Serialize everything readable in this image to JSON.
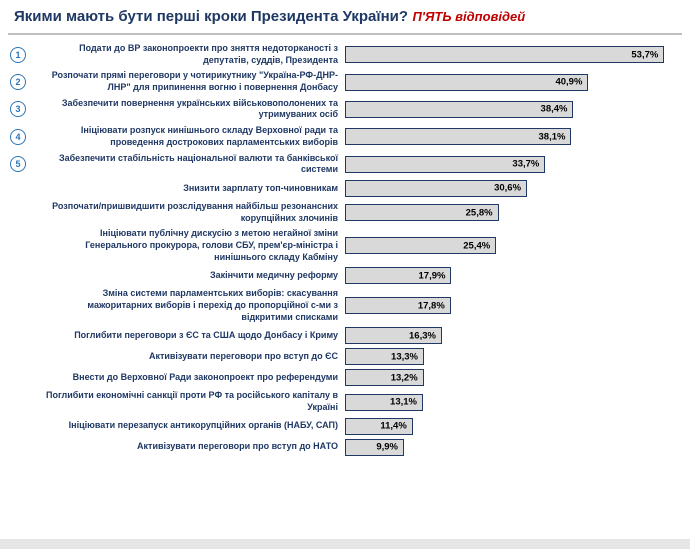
{
  "title": {
    "main": "Якими мають бути перші кроки Президента України?",
    "highlight": "П'ЯТЬ відповідей"
  },
  "colors": {
    "title_navy": "#1F3864",
    "subtitle_red": "#C00000",
    "bar_fill": "#D9D9D9",
    "bar_border": "#1F3864",
    "badge_blue": "#2E75B6",
    "value_text": "#000000"
  },
  "chart_data": {
    "type": "bar",
    "orientation": "horizontal",
    "title": "Якими мають бути перші кроки Президента України? П'ЯТЬ відповідей",
    "value_suffix": "%",
    "xlim": [
      0,
      57
    ],
    "grid": false,
    "legend": false,
    "value_labels_position": "inside-end",
    "items": [
      {
        "rank": "1",
        "label": "Подати до ВР законопроекти про зняття недоторканості з депутатів, суддів, Президента",
        "value": 53.7,
        "value_label": "53,7%"
      },
      {
        "rank": "2",
        "label": "Розпочати прямі переговори у чотирикутнику \"Україна-РФ-ДНР-ЛНР\" для припинення вогню і повернення Донбасу",
        "value": 40.9,
        "value_label": "40,9%"
      },
      {
        "rank": "3",
        "label": "Забезпечити повернення українських військовополонених та утримуваних осіб",
        "value": 38.4,
        "value_label": "38,4%"
      },
      {
        "rank": "4",
        "label": "Ініціювати розпуск нинішнього складу Верховної ради та проведення дострокових парламентських виборів",
        "value": 38.1,
        "value_label": "38,1%"
      },
      {
        "rank": "5",
        "label": "Забезпечити стабільність національної валюти та банківської системи",
        "value": 33.7,
        "value_label": "33,7%"
      },
      {
        "rank": "",
        "label": "Знизити зарплату топ-чиновникам",
        "value": 30.6,
        "value_label": "30,6%"
      },
      {
        "rank": "",
        "label": "Розпочати/пришвидшити розслідування найбільш резонансних корупційних злочинів",
        "value": 25.8,
        "value_label": "25,8%"
      },
      {
        "rank": "",
        "label": "Ініціювати публічну дискусію з метою негайної зміни Генерального прокурора, голови СБУ, прем'єр-міністра і нинішнього складу Кабміну",
        "value": 25.4,
        "value_label": "25,4%"
      },
      {
        "rank": "",
        "label": "Закінчити медичну реформу",
        "value": 17.9,
        "value_label": "17,9%"
      },
      {
        "rank": "",
        "label": "Зміна системи парламентських виборів: скасування мажоритарних виборів і перехід до пропорційної с-ми з відкритими списками",
        "value": 17.8,
        "value_label": "17,8%"
      },
      {
        "rank": "",
        "label": "Поглибити переговори з ЄС та США щодо Донбасу і Криму",
        "value": 16.3,
        "value_label": "16,3%"
      },
      {
        "rank": "",
        "label": "Активізувати переговори про вступ до ЄС",
        "value": 13.3,
        "value_label": "13,3%"
      },
      {
        "rank": "",
        "label": "Внести до Верховної Ради законопроект про референдуми",
        "value": 13.2,
        "value_label": "13,2%"
      },
      {
        "rank": "",
        "label": "Поглибити економічні санкції проти РФ та російського капіталу в Україні",
        "value": 13.1,
        "value_label": "13,1%"
      },
      {
        "rank": "",
        "label": "Ініціювати перезапуск антикорупційних органів (НАБУ, САП)",
        "value": 11.4,
        "value_label": "11,4%"
      },
      {
        "rank": "",
        "label": "Активізувати переговори про вступ до НАТО",
        "value": 9.9,
        "value_label": "9,9%"
      }
    ]
  }
}
